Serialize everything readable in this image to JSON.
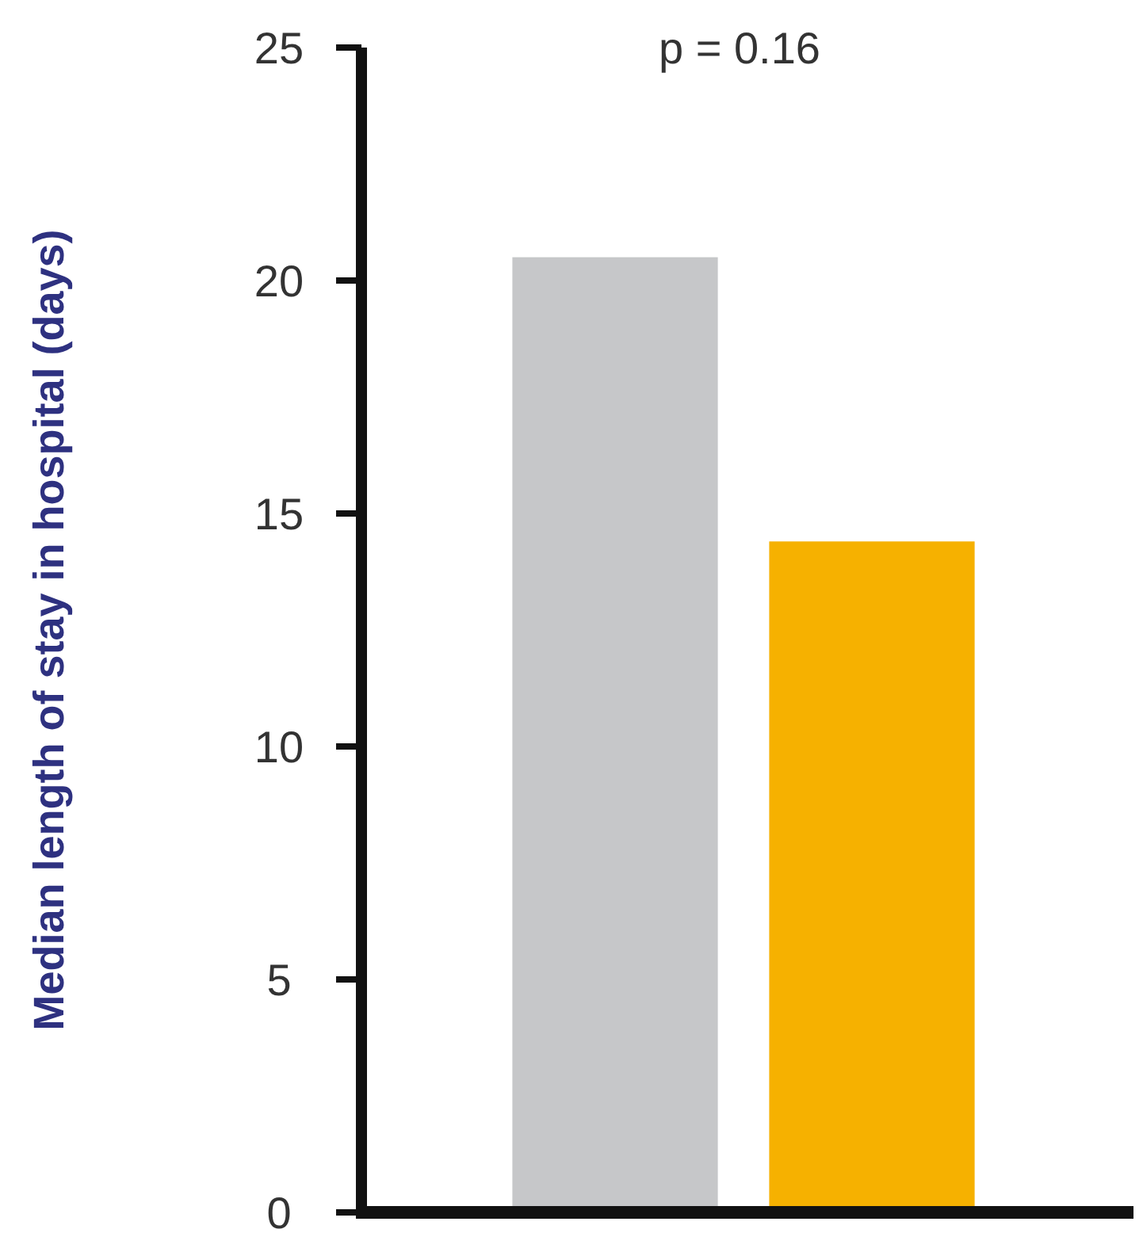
{
  "chart_data": {
    "type": "bar",
    "ylabel": "Median length of stay in hospital (days)",
    "categories": [
      null,
      null
    ],
    "values": [
      20.5,
      14.4
    ],
    "colors": [
      "#c6c7c9",
      "#f6b100"
    ],
    "ylim": [
      0,
      25
    ],
    "yticks": [
      0,
      5,
      10,
      15,
      20,
      25
    ],
    "annotations": [
      "p = 0.16"
    ],
    "grid": false
  }
}
